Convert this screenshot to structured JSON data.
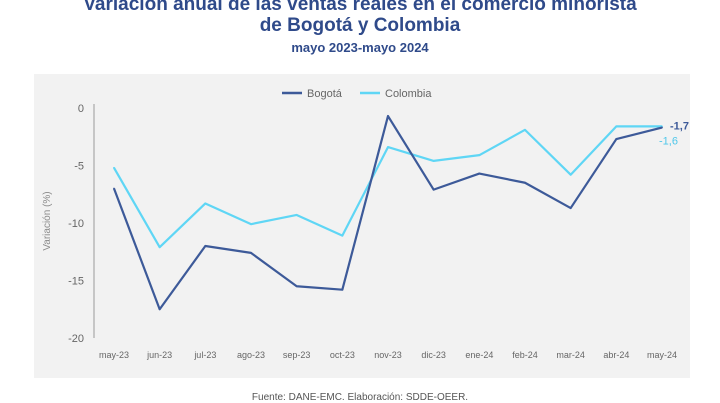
{
  "title_line1": "Variación anual de las ventas reales en el comercio minorista",
  "title_line2": "de Bogotá y Colombia",
  "subtitle": "mayo 2023-mayo 2024",
  "source": "Fuente: DANE-EMC. Elaboración: SDDE-OEER.",
  "colors": {
    "title": "#2f4a8a",
    "bogota": "#3d5a99",
    "colombia": "#5fd6f5",
    "panel": "#f2f2f2"
  },
  "chart_data": {
    "type": "line",
    "title": "",
    "xlabel": "",
    "ylabel": "Variación (%)",
    "ylim": [
      -20,
      0
    ],
    "yticks": [
      0,
      -5,
      -10,
      -15,
      -20
    ],
    "ytick_labels": [
      "0",
      "-5",
      "-10",
      "-15",
      "-20"
    ],
    "categories": [
      "may-23",
      "jun-23",
      "jul-23",
      "ago-23",
      "sep-23",
      "oct-23",
      "nov-23",
      "dic-23",
      "ene-24",
      "feb-24",
      "mar-24",
      "abr-24",
      "may-24"
    ],
    "legend_position": "top-center",
    "grid": false,
    "series": [
      {
        "name": "Bogotá",
        "color": "#3d5a99",
        "values": [
          -7.0,
          -17.5,
          -12.0,
          -12.6,
          -15.5,
          -15.8,
          -0.7,
          -7.1,
          -5.7,
          -6.5,
          -8.7,
          -2.7,
          -1.7
        ],
        "end_label": "-1,7"
      },
      {
        "name": "Colombia",
        "color": "#5fd6f5",
        "values": [
          -5.2,
          -12.1,
          -8.3,
          -10.1,
          -9.3,
          -11.1,
          -3.4,
          -4.6,
          -4.1,
          -1.9,
          -5.8,
          -1.6,
          -1.6
        ],
        "end_label": "-1,6"
      }
    ]
  }
}
